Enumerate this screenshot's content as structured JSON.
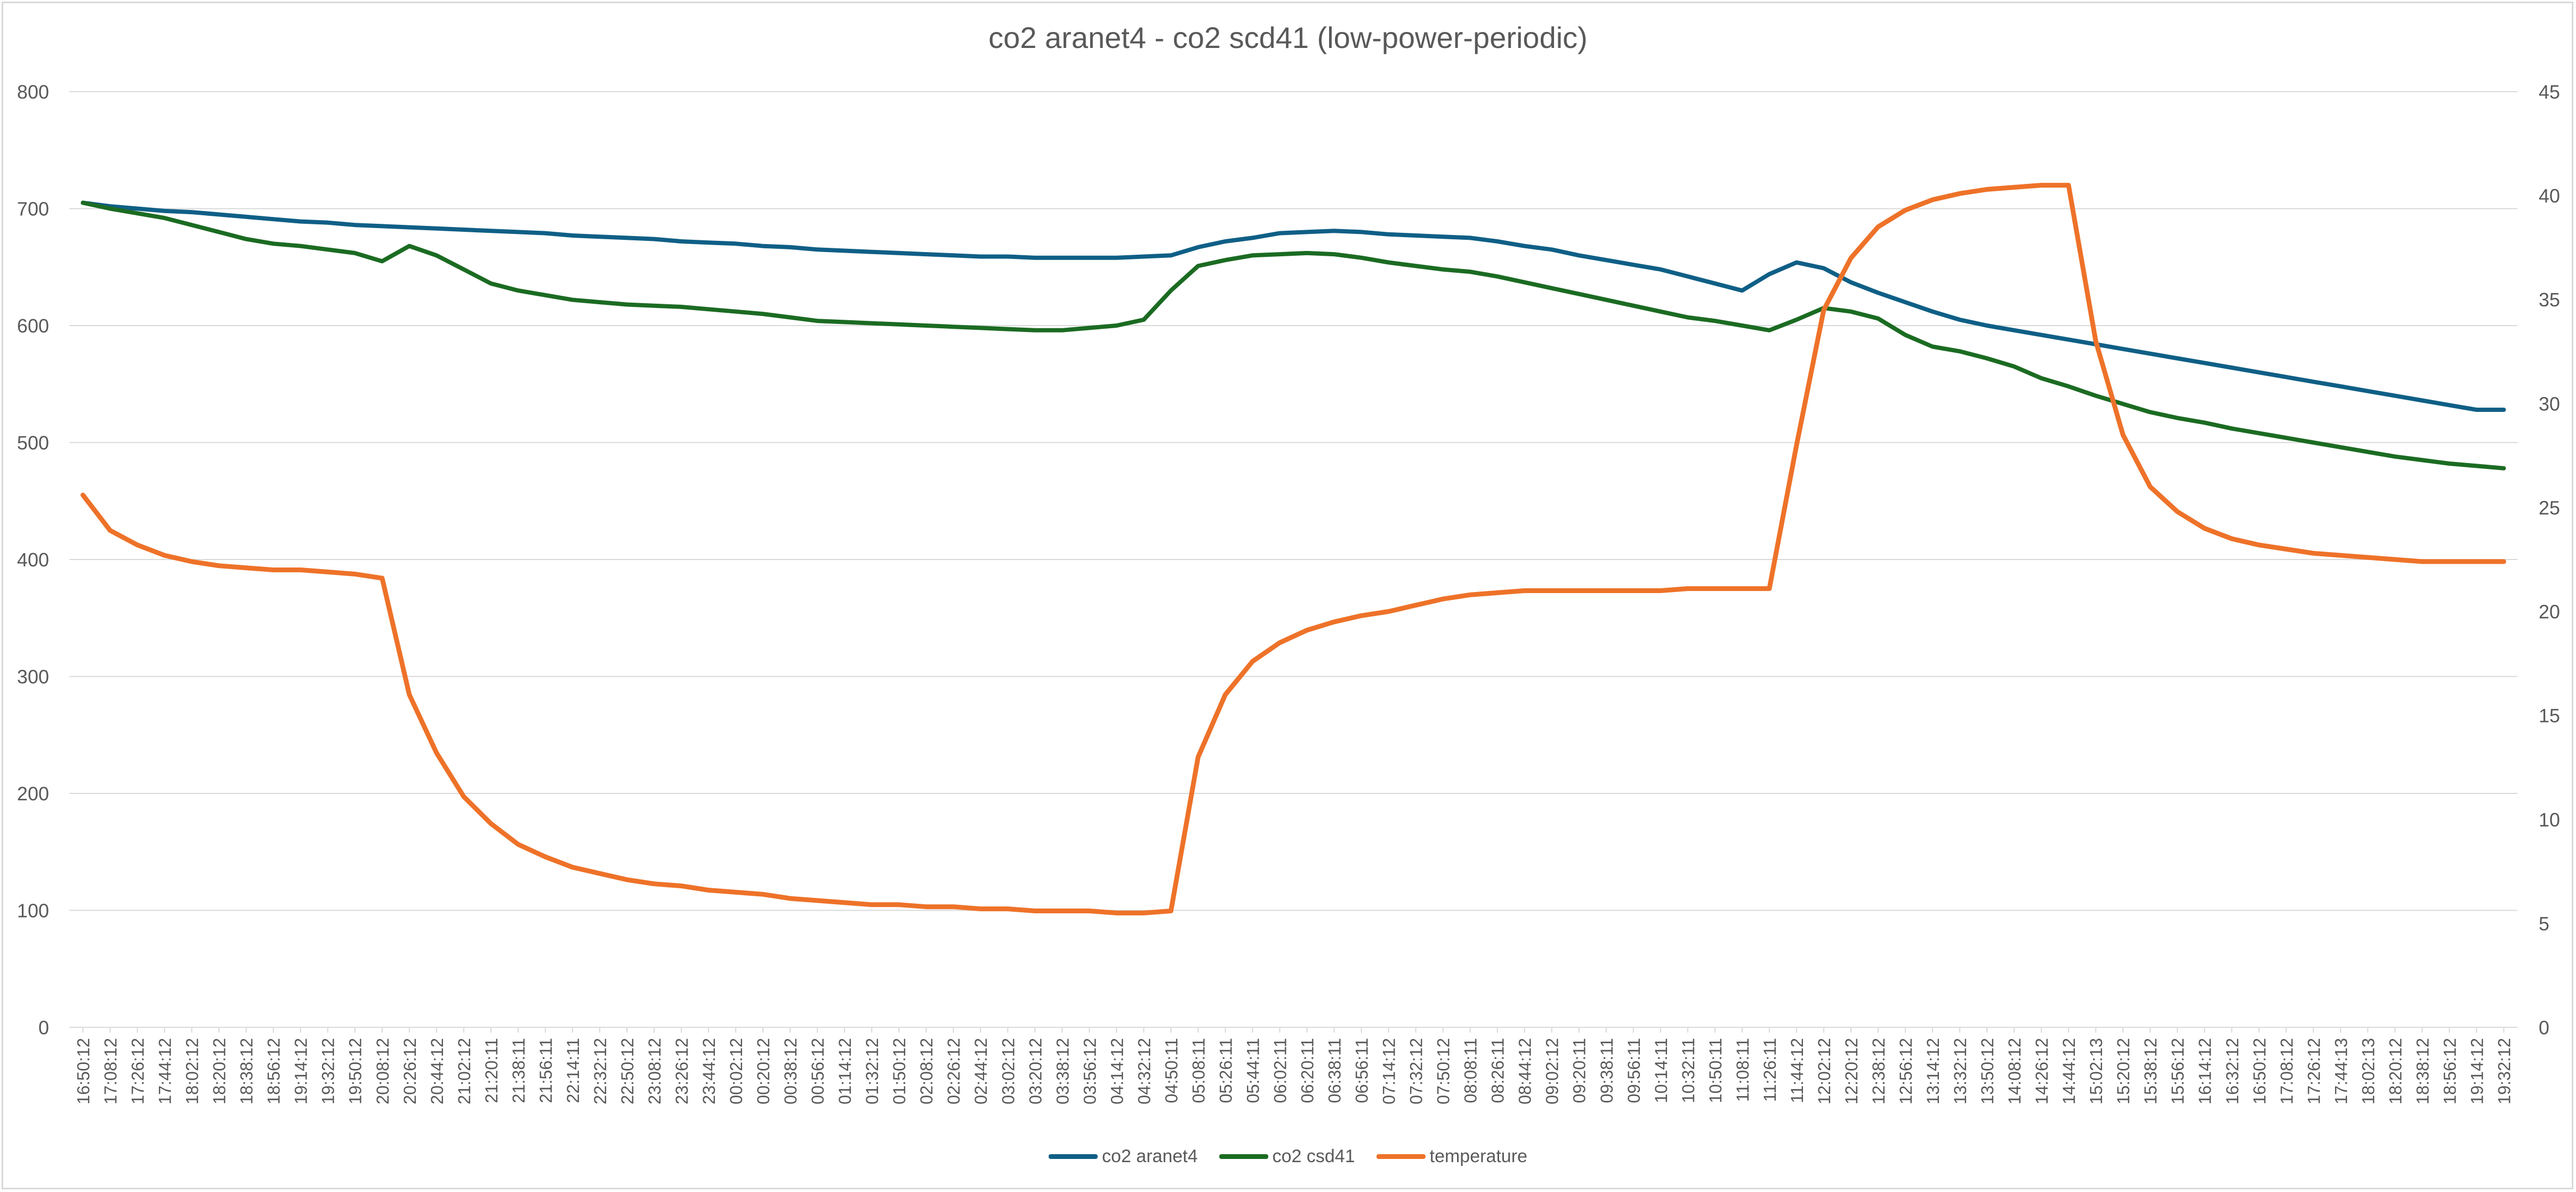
{
  "chart_data": {
    "type": "line",
    "title": "co2 aranet4 - co2 scd41 (low-power-periodic)",
    "xlabel": "",
    "ylabel": "",
    "ylim": [
      0,
      800
    ],
    "y_ticks": [
      "0",
      "100",
      "200",
      "300",
      "400",
      "500",
      "600",
      "700",
      "800"
    ],
    "y2lim": [
      0,
      45
    ],
    "y2_ticks": [
      "0",
      "5",
      "10",
      "15",
      "20",
      "25",
      "30",
      "35",
      "40",
      "45"
    ],
    "grid": true,
    "legend_position": "bottom",
    "x_tick_labels": [
      "16:50:12",
      "17:08:12",
      "17:26:12",
      "17:44:12",
      "18:02:12",
      "18:20:12",
      "18:38:12",
      "18:56:12",
      "19:14:12",
      "19:32:12",
      "19:50:12",
      "20:08:12",
      "20:26:12",
      "20:44:12",
      "21:02:12",
      "21:20:11",
      "21:38:11",
      "21:56:11",
      "22:14:11",
      "22:32:12",
      "22:50:12",
      "23:08:12",
      "23:26:12",
      "23:44:12",
      "00:02:12",
      "00:20:12",
      "00:38:12",
      "00:56:12",
      "01:14:12",
      "01:32:12",
      "01:50:12",
      "02:08:12",
      "02:26:12",
      "02:44:12",
      "03:02:12",
      "03:20:12",
      "03:38:12",
      "03:56:12",
      "04:14:12",
      "04:32:12",
      "04:50:11",
      "05:08:11",
      "05:26:11",
      "05:44:11",
      "06:02:11",
      "06:20:11",
      "06:38:11",
      "06:56:11",
      "07:14:12",
      "07:32:12",
      "07:50:12",
      "08:08:11",
      "08:26:11",
      "08:44:12",
      "09:02:12",
      "09:20:11",
      "09:38:11",
      "09:56:11",
      "10:14:11",
      "10:32:11",
      "10:50:11",
      "11:08:11",
      "11:26:11",
      "11:44:12",
      "12:02:12",
      "12:20:12",
      "12:38:12",
      "12:56:12",
      "13:14:12",
      "13:32:12",
      "13:50:12",
      "14:08:12",
      "14:26:12",
      "14:44:12",
      "15:02:13",
      "15:20:12",
      "15:38:12",
      "15:56:12",
      "16:14:12",
      "16:32:12",
      "16:50:12",
      "17:08:12",
      "17:26:12",
      "17:44:13",
      "18:02:13",
      "18:20:12",
      "18:38:12",
      "18:56:12",
      "19:14:12",
      "19:32:12"
    ],
    "series": [
      {
        "name": "co2 aranet4",
        "axis": "left",
        "color": "#0f5f86",
        "values": [
          705,
          702,
          700,
          698,
          697,
          695,
          693,
          691,
          689,
          688,
          686,
          685,
          684,
          683,
          682,
          681,
          680,
          679,
          677,
          676,
          675,
          674,
          672,
          671,
          670,
          668,
          667,
          665,
          664,
          663,
          662,
          661,
          660,
          659,
          659,
          658,
          658,
          658,
          658,
          659,
          660,
          667,
          672,
          675,
          679,
          680,
          681,
          680,
          678,
          677,
          676,
          675,
          672,
          668,
          665,
          660,
          656,
          652,
          648,
          642,
          636,
          630,
          644,
          654,
          649,
          637,
          628,
          620,
          612,
          605,
          600,
          596,
          592,
          588,
          584,
          580,
          576,
          572,
          568,
          564,
          560,
          556,
          552,
          548,
          544,
          540,
          536,
          532,
          528,
          528
        ]
      },
      {
        "name": "co2 csd41",
        "axis": "left",
        "color": "#1b6b22",
        "values": [
          705,
          700,
          696,
          692,
          686,
          680,
          674,
          670,
          668,
          665,
          662,
          655,
          668,
          660,
          648,
          636,
          630,
          626,
          622,
          620,
          618,
          617,
          616,
          614,
          612,
          610,
          607,
          604,
          603,
          602,
          601,
          600,
          599,
          598,
          597,
          596,
          596,
          598,
          600,
          605,
          630,
          651,
          656,
          660,
          661,
          662,
          661,
          658,
          654,
          651,
          648,
          646,
          642,
          637,
          632,
          627,
          622,
          617,
          612,
          607,
          604,
          600,
          596,
          605,
          615,
          612,
          606,
          592,
          582,
          578,
          572,
          565,
          555,
          548,
          540,
          533,
          526,
          521,
          517,
          512,
          508,
          504,
          500,
          496,
          492,
          488,
          485,
          482,
          480,
          478
        ]
      },
      {
        "name": "temperature",
        "axis": "right",
        "color": "#ee7229",
        "values": [
          25.6,
          23.9,
          23.2,
          22.7,
          22.4,
          22.2,
          22.1,
          22.0,
          22.0,
          21.9,
          21.8,
          21.6,
          16.0,
          13.2,
          11.1,
          9.8,
          8.8,
          8.2,
          7.7,
          7.4,
          7.1,
          6.9,
          6.8,
          6.6,
          6.5,
          6.4,
          6.2,
          6.1,
          6.0,
          5.9,
          5.9,
          5.8,
          5.8,
          5.7,
          5.7,
          5.6,
          5.6,
          5.6,
          5.5,
          5.5,
          5.6,
          13.0,
          16.0,
          17.6,
          18.5,
          19.1,
          19.5,
          19.8,
          20.0,
          20.3,
          20.6,
          20.8,
          20.9,
          21.0,
          21.0,
          21.0,
          21.0,
          21.0,
          21.0,
          21.1,
          21.1,
          21.1,
          21.1,
          28.0,
          34.5,
          37.0,
          38.5,
          39.3,
          39.8,
          40.1,
          40.3,
          40.4,
          40.5,
          40.5,
          33.0,
          28.5,
          26.0,
          24.8,
          24.0,
          23.5,
          23.2,
          23.0,
          22.8,
          22.7,
          22.6,
          22.5,
          22.4,
          22.4,
          22.4,
          22.4
        ]
      }
    ]
  }
}
